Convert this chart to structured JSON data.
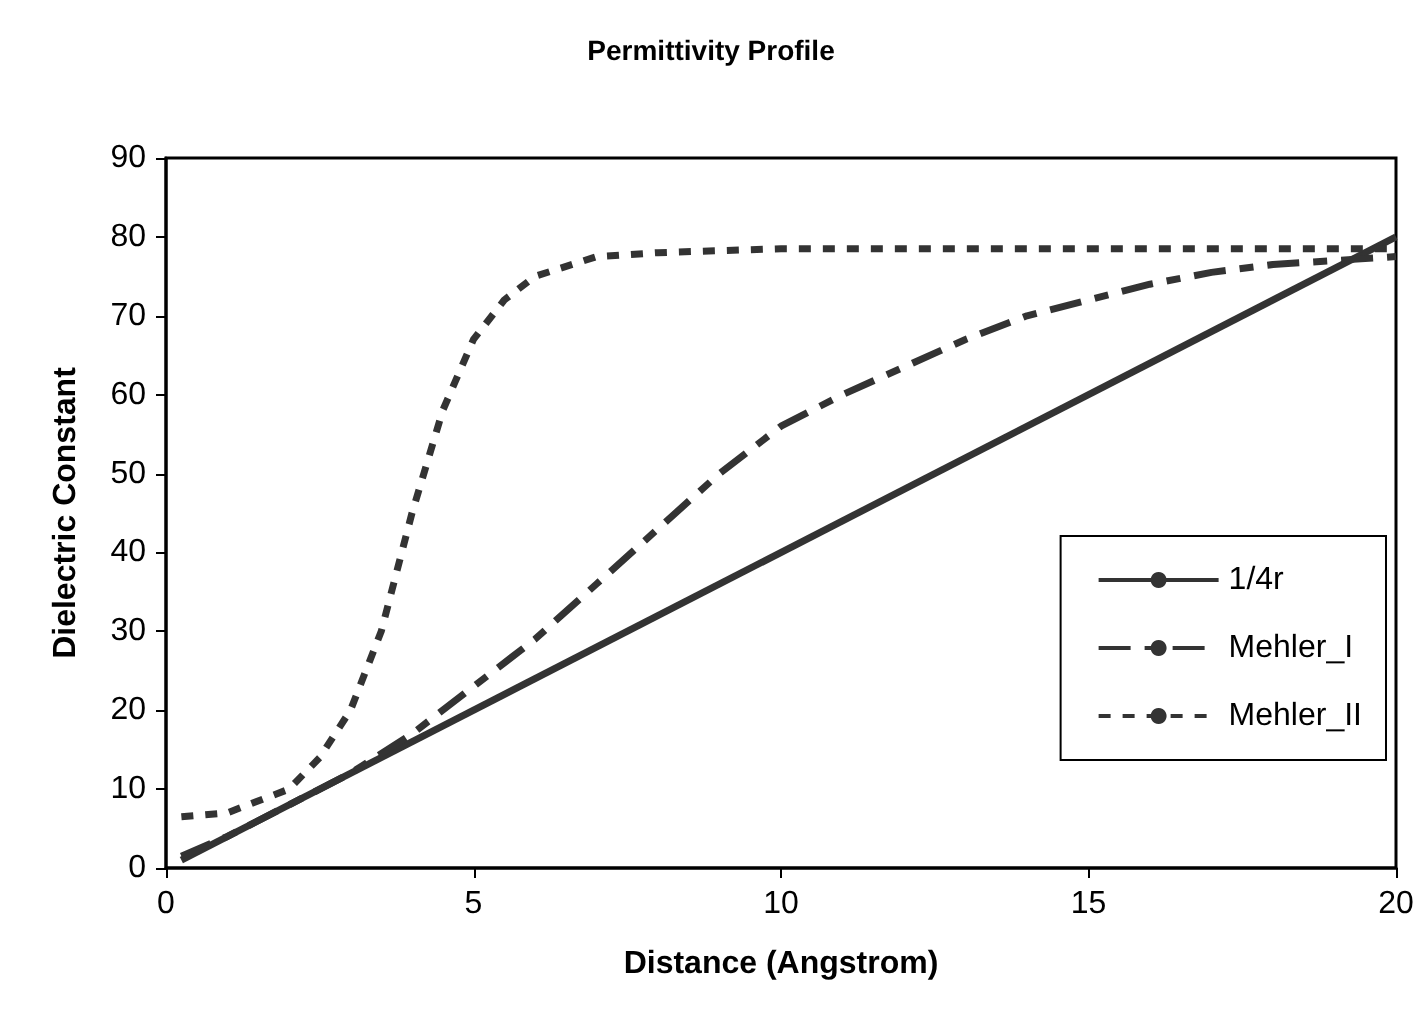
{
  "chart_data": {
    "type": "line",
    "title": "Permittivity Profile",
    "xlabel": "Distance (Angstrom)",
    "ylabel": "Dielectric Constant",
    "xlim": [
      0,
      20
    ],
    "xticks": [
      0,
      5,
      10,
      15,
      20
    ],
    "ylim": [
      0,
      90
    ],
    "yticks": [
      0,
      10,
      20,
      30,
      40,
      50,
      60,
      70,
      80,
      90
    ],
    "grid": false,
    "legend": "right",
    "marker": "none",
    "series": [
      {
        "name": "1/4r",
        "color": "#333333",
        "line_style": "solid",
        "x": [
          0.25,
          20
        ],
        "values": [
          1,
          80
        ]
      },
      {
        "name": "Mehler_I",
        "color": "#333333",
        "line_style": "dashed",
        "x": [
          0.25,
          1,
          2,
          3,
          4,
          5,
          6,
          7,
          8,
          9,
          10,
          11,
          12,
          13,
          14,
          15,
          16,
          17,
          18,
          19,
          20
        ],
        "values": [
          1.5,
          4,
          8,
          12,
          17,
          23,
          29,
          36,
          43,
          50,
          56,
          60,
          63.5,
          67,
          70,
          72,
          74,
          75.5,
          76.5,
          77,
          77.5
        ]
      },
      {
        "name": "Mehler_II",
        "color": "#333333",
        "line_style": "dotted",
        "x": [
          0.25,
          1,
          2,
          2.5,
          3,
          3.5,
          4,
          4.5,
          5,
          5.5,
          6,
          7,
          8,
          10,
          12,
          15,
          18,
          20
        ],
        "values": [
          6.5,
          7,
          10,
          14,
          20,
          30,
          45,
          58,
          67,
          72,
          75,
          77.5,
          78,
          78.5,
          78.5,
          78.5,
          78.5,
          78.5
        ]
      }
    ]
  }
}
